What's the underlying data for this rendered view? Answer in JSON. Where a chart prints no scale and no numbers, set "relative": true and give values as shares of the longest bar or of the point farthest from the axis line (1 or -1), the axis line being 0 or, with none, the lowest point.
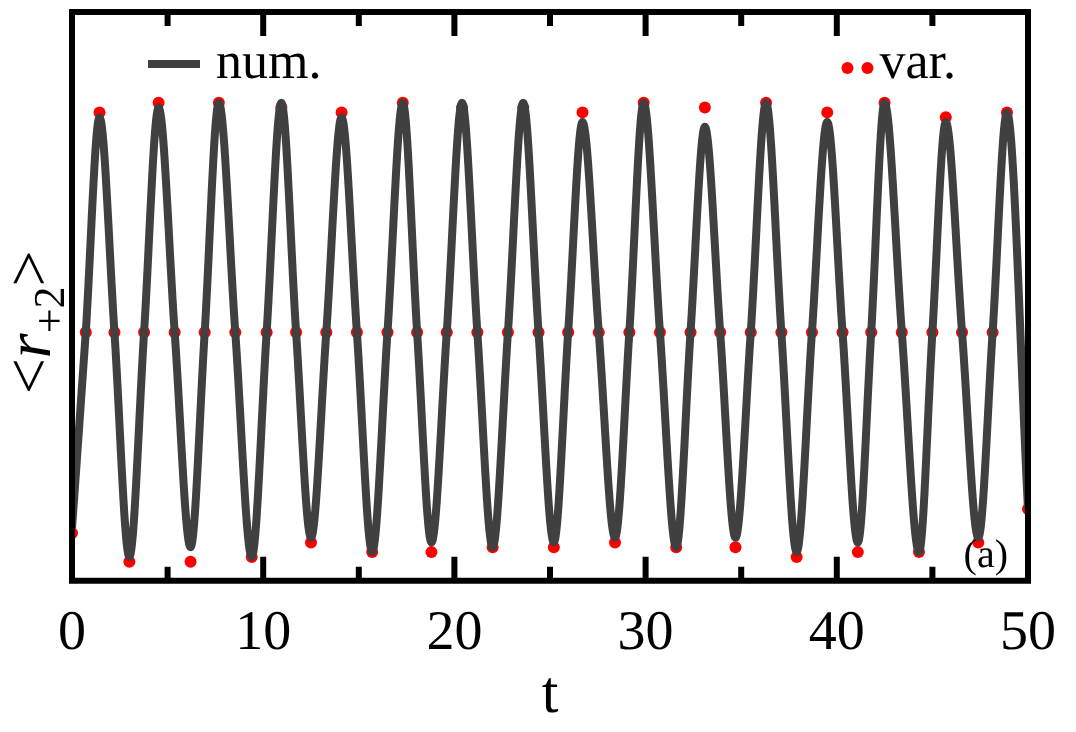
{
  "chart_data": {
    "type": "line",
    "xlabel": "t",
    "ylabel": "<r$_{+2}$>",
    "relative": true,
    "legend": "top",
    "grid": false,
    "xlim": [
      0,
      50
    ],
    "xticks": [
      0,
      {
        "value": 5,
        "label": null
      },
      10,
      {
        "value": 15,
        "label": null
      },
      20,
      {
        "value": 25,
        "label": null
      },
      30,
      {
        "value": 35,
        "label": null
      },
      40,
      {
        "value": 45,
        "label": null
      },
      50
    ],
    "x": [
      0,
      0.72,
      1.44,
      2.22,
      3.0,
      3.77,
      4.53,
      5.37,
      6.2,
      6.94,
      7.68,
      8.54,
      9.4,
      10.18,
      10.95,
      11.72,
      12.5,
      13.3,
      14.1,
      14.9,
      15.7,
      16.5,
      17.3,
      18.05,
      18.8,
      19.6,
      20.4,
      21.2,
      22.0,
      22.8,
      23.6,
      24.4,
      25.2,
      25.95,
      26.7,
      27.55,
      28.4,
      29.15,
      29.9,
      30.75,
      31.6,
      32.35,
      33.1,
      33.9,
      34.7,
      35.5,
      36.3,
      37.1,
      37.9,
      38.7,
      39.5,
      40.3,
      41.1,
      41.8,
      42.5,
      43.4,
      44.3,
      45.0,
      45.7,
      46.55,
      47.4,
      48.15,
      48.9,
      50
    ],
    "series": [
      {
        "name": "num.",
        "color": "#404040",
        "marker": "none",
        "line_style": "solid",
        "values": [
          0.11,
          0.52,
          0.97,
          0.52,
          0.05,
          0.52,
          0.99,
          0.52,
          0.07,
          0.52,
          1.0,
          0.52,
          0.05,
          0.52,
          1.0,
          0.52,
          0.09,
          0.52,
          0.97,
          0.52,
          0.06,
          0.52,
          1.0,
          0.52,
          0.08,
          0.52,
          1.0,
          0.52,
          0.07,
          0.52,
          1.0,
          0.52,
          0.08,
          0.52,
          0.96,
          0.52,
          0.09,
          0.52,
          1.0,
          0.52,
          0.07,
          0.52,
          0.95,
          0.52,
          0.09,
          0.52,
          1.0,
          0.52,
          0.06,
          0.52,
          0.96,
          0.52,
          0.08,
          0.52,
          1.0,
          0.52,
          0.06,
          0.52,
          0.96,
          0.52,
          0.09,
          0.52,
          0.98,
          0.15
        ]
      },
      {
        "name": "var.",
        "type": "scatter",
        "color": "#ff0000",
        "marker": "circle",
        "values": [
          0.1,
          0.52,
          0.98,
          0.52,
          0.04,
          0.52,
          1.0,
          0.52,
          0.04,
          0.52,
          1.0,
          0.52,
          0.05,
          0.52,
          0.99,
          0.52,
          0.08,
          0.52,
          0.98,
          0.52,
          0.06,
          0.52,
          1.0,
          0.52,
          0.06,
          0.52,
          0.99,
          0.52,
          0.07,
          0.52,
          0.99,
          0.52,
          0.07,
          0.52,
          0.98,
          0.52,
          0.08,
          0.52,
          1.0,
          0.52,
          0.07,
          0.52,
          0.99,
          0.52,
          0.07,
          0.52,
          1.0,
          0.52,
          0.05,
          0.52,
          0.98,
          0.52,
          0.06,
          0.52,
          1.0,
          0.52,
          0.06,
          0.52,
          0.97,
          0.52,
          0.08,
          0.52,
          0.98,
          0.15
        ]
      }
    ],
    "annotations": [
      "(a)"
    ]
  }
}
